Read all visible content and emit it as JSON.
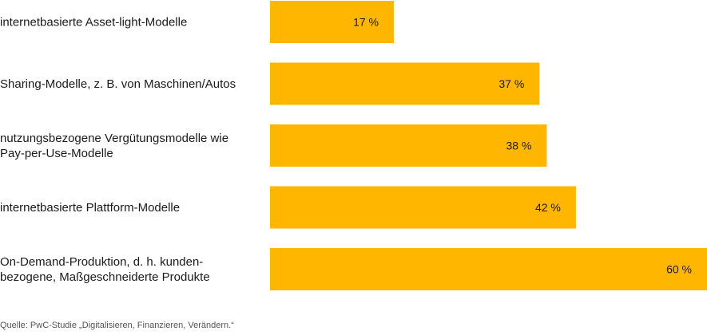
{
  "chart_data": {
    "type": "bar",
    "orientation": "horizontal",
    "categories": [
      [
        "internetbasierte Asset-light-Modelle"
      ],
      [
        "Sharing-Modelle, z. B. von Maschinen/Autos"
      ],
      [
        "nutzungsbezogene Vergütungsmodelle wie",
        "Pay-per-Use-Modelle"
      ],
      [
        "internetbasierte Plattform-Modelle"
      ],
      [
        "On-Demand-Produktion, d. h. kunden-",
        "bezogene, Maßgeschneiderte Produkte"
      ]
    ],
    "values": [
      17,
      37,
      38,
      42,
      60
    ],
    "value_labels": [
      "17 %",
      "37 %",
      "38 %",
      "42 %",
      "60 %"
    ],
    "xlim": [
      0,
      60
    ],
    "grid": false,
    "bar_color": "#ffb600",
    "text_color": "#1a1a1a"
  },
  "source": "Quelle: PwC-Studie „Digitalisieren, Finanzieren, Verändern.“"
}
